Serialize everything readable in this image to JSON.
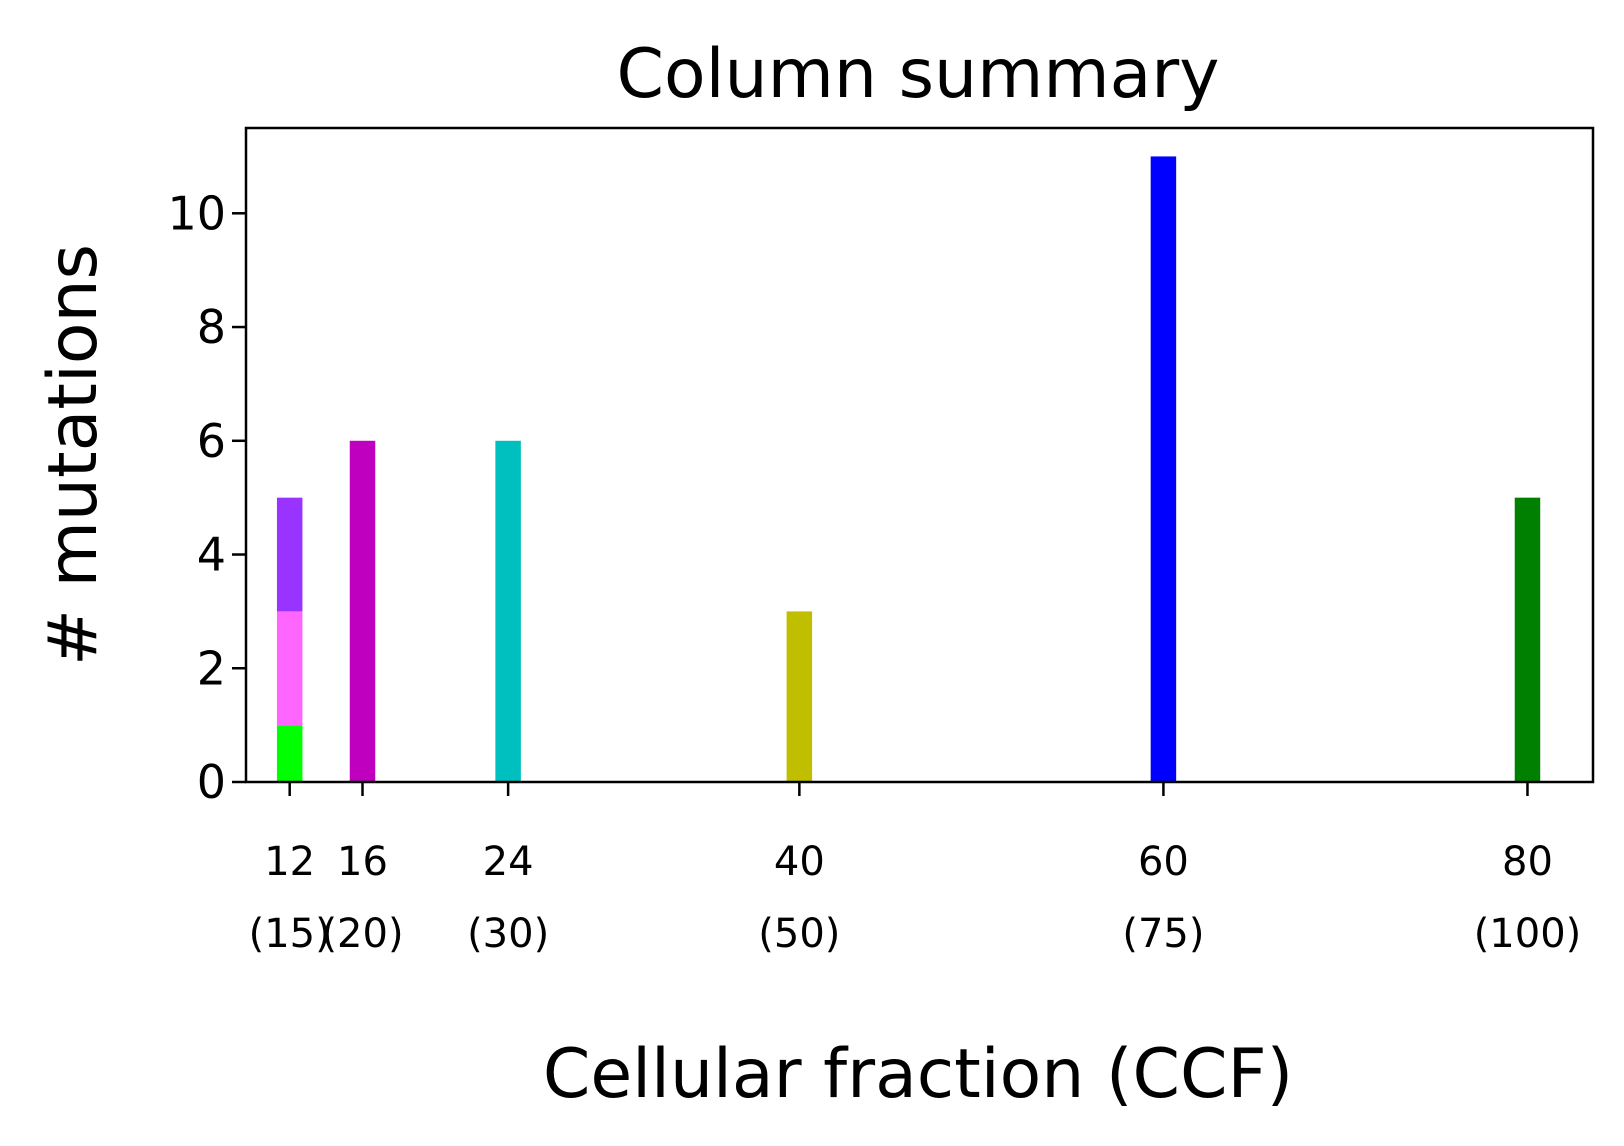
{
  "chart_data": {
    "type": "bar",
    "title": "Column summary",
    "xlabel": "Cellular fraction (CCF)",
    "ylabel": "# mutations",
    "xlim": [
      9.6,
      83.6
    ],
    "ylim": [
      0,
      11.5
    ],
    "yticks": [
      0,
      2,
      4,
      6,
      8,
      10
    ],
    "grid": false,
    "legend": "none",
    "bar_width": 1.4,
    "categories": [
      {
        "x": 12,
        "label": "12",
        "sublabel": "(15)"
      },
      {
        "x": 16,
        "label": "16",
        "sublabel": "(20)"
      },
      {
        "x": 24,
        "label": "24",
        "sublabel": "(30)"
      },
      {
        "x": 40,
        "label": "40",
        "sublabel": "(50)"
      },
      {
        "x": 60,
        "label": "60",
        "sublabel": "(75)"
      },
      {
        "x": 80,
        "label": "80",
        "sublabel": "(100)"
      }
    ],
    "bars": [
      {
        "x": 12,
        "segments": [
          {
            "value": 1,
            "color": "#00ff00"
          },
          {
            "value": 2,
            "color": "#ff66ff"
          },
          {
            "value": 2,
            "color": "#9933ff"
          }
        ]
      },
      {
        "x": 16,
        "segments": [
          {
            "value": 6,
            "color": "#bf00bf"
          }
        ]
      },
      {
        "x": 24,
        "segments": [
          {
            "value": 6,
            "color": "#00bfbf"
          }
        ]
      },
      {
        "x": 40,
        "segments": [
          {
            "value": 3,
            "color": "#bfbf00"
          }
        ]
      },
      {
        "x": 60,
        "segments": [
          {
            "value": 11,
            "color": "#0000ff"
          }
        ]
      },
      {
        "x": 80,
        "segments": [
          {
            "value": 5,
            "color": "#008000"
          }
        ]
      }
    ]
  }
}
